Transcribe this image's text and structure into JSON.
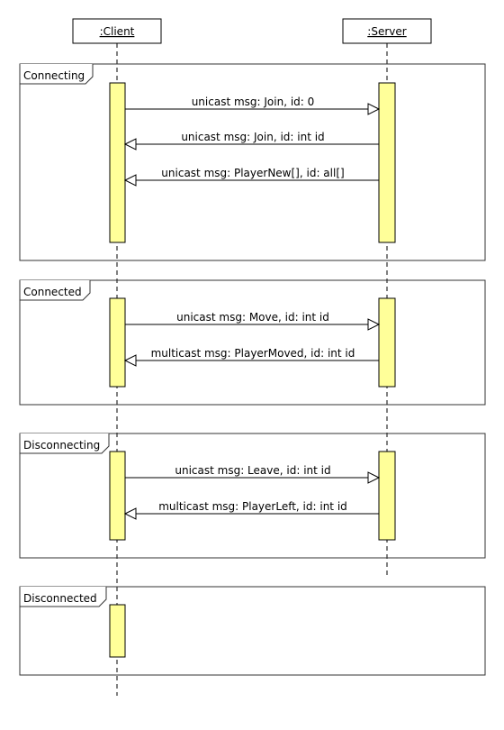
{
  "lifelines": [
    {
      "label": ":Client"
    },
    {
      "label": ":Server"
    }
  ],
  "fragments": [
    {
      "label": "Connecting",
      "messages": [
        {
          "text": "unicast msg: Join, id: 0",
          "direction": "client-to-server"
        },
        {
          "text": "unicast msg: Join, id: int id",
          "direction": "server-to-client"
        },
        {
          "text": "unicast msg: PlayerNew[], id: all[]",
          "direction": "server-to-client"
        }
      ]
    },
    {
      "label": "Connected",
      "messages": [
        {
          "text": "unicast msg: Move, id: int id",
          "direction": "client-to-server"
        },
        {
          "text": "multicast msg: PlayerMoved, id: int id",
          "direction": "server-to-client"
        }
      ]
    },
    {
      "label": "Disconnecting",
      "messages": [
        {
          "text": "unicast msg: Leave, id: int id",
          "direction": "client-to-server"
        },
        {
          "text": "multicast msg: PlayerLeft, id: int id",
          "direction": "server-to-client"
        }
      ]
    },
    {
      "label": "Disconnected",
      "messages": []
    }
  ],
  "colors": {
    "activation_fill": "#ffff99",
    "line": "#000000",
    "frame_border": "#333333",
    "background": "#ffffff"
  }
}
